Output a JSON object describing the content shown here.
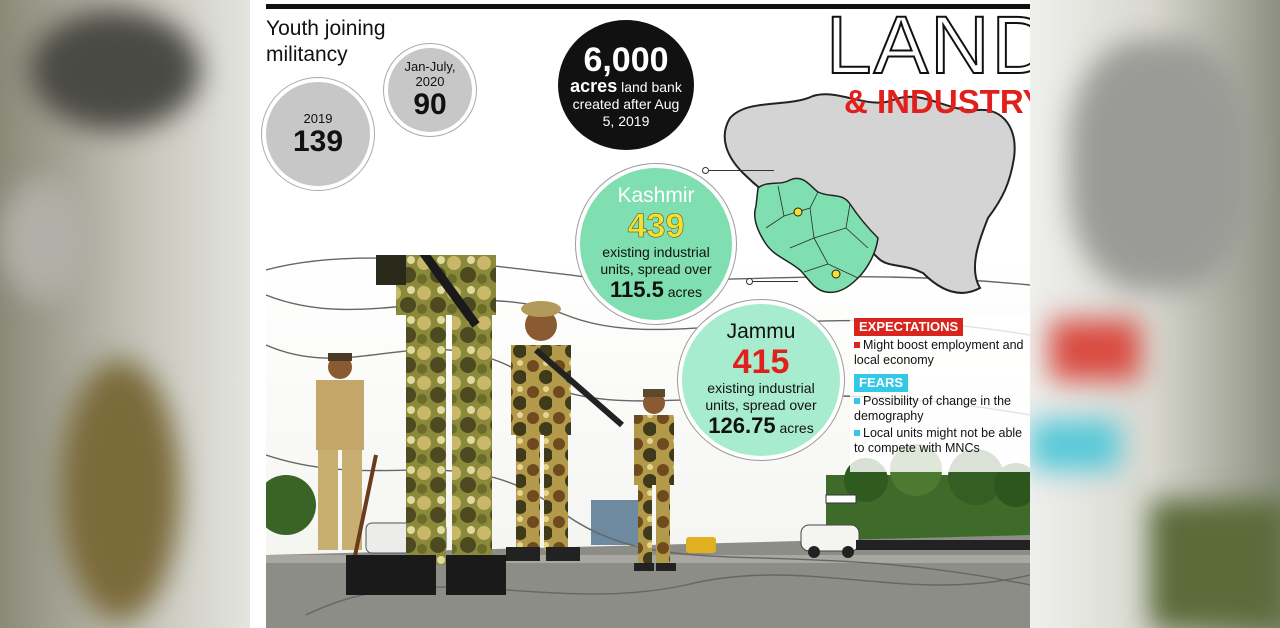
{
  "header": {
    "title_main": "LAND",
    "title_sub": "& INDUSTRY"
  },
  "militancy": {
    "title": "Youth joining militancy",
    "stat_2019": {
      "label": "2019",
      "value": "139"
    },
    "stat_2020": {
      "label": "Jan-July, 2020",
      "value": "90"
    }
  },
  "land_bank": {
    "value": "6,000",
    "unit": "acres",
    "description": "land bank created after Aug 5, 2019"
  },
  "kashmir": {
    "name": "Kashmir",
    "units": "439",
    "units_desc": "existing industrial units, spread over",
    "acres": "115.5",
    "acres_label": "acres"
  },
  "jammu": {
    "name": "Jammu",
    "units": "415",
    "units_desc": "existing industrial units, spread over",
    "acres": "126.75",
    "acres_label": "acres"
  },
  "expectations": {
    "label": "EXPECTATIONS",
    "items": [
      "Might boost employment and local economy"
    ]
  },
  "fears": {
    "label": "FEARS",
    "items": [
      "Possibility of change in the demography",
      "Local units might not be able to compete with MNCs"
    ]
  },
  "colors": {
    "accent_red": "#e0201c",
    "kashmir_green": "#7fdfb0",
    "jammu_green": "#a8ecd0",
    "fear_blue": "#33c8e6",
    "map_grey": "#d4d4d4"
  }
}
